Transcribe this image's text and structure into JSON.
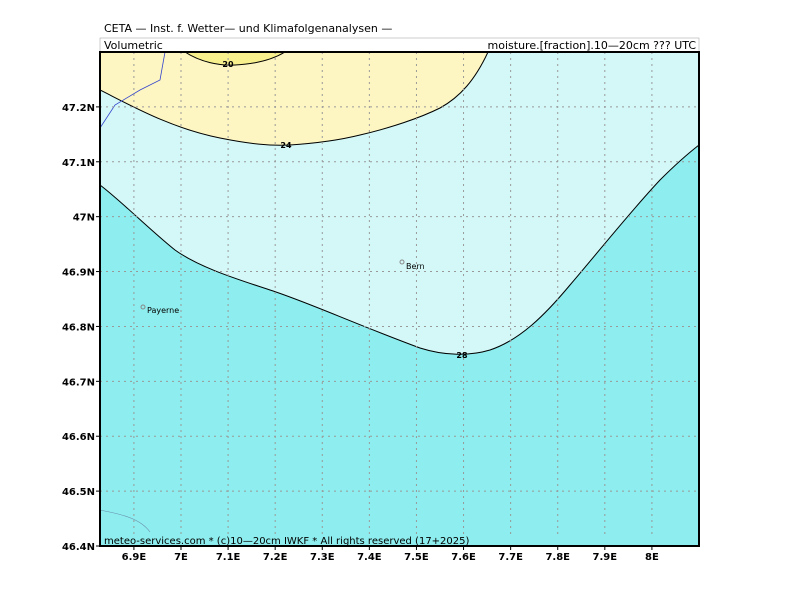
{
  "header": {
    "title": "CETA — Inst. f. Wetter— und Klimafolgenanalysen —",
    "left": "Volumetric",
    "right": "moisture.[fraction].10—20cm ??? UTC"
  },
  "map": {
    "xlim": [
      6.828,
      8.1
    ],
    "ylim": [
      46.4,
      47.3
    ],
    "xticks": [
      {
        "value": 6.9,
        "label": "6.9E"
      },
      {
        "value": 7,
        "label": "7E"
      },
      {
        "value": 7.1,
        "label": "7.1E"
      },
      {
        "value": 7.2,
        "label": "7.2E"
      },
      {
        "value": 7.3,
        "label": "7.3E"
      },
      {
        "value": 7.4,
        "label": "7.4E"
      },
      {
        "value": 7.5,
        "label": "7.5E"
      },
      {
        "value": 7.6,
        "label": "7.6E"
      },
      {
        "value": 7.7,
        "label": "7.7E"
      },
      {
        "value": 7.8,
        "label": "7.8E"
      },
      {
        "value": 7.9,
        "label": "7.9E"
      },
      {
        "value": 8,
        "label": "8E"
      }
    ],
    "yticks": [
      {
        "value": 46.4,
        "label": "46.4N"
      },
      {
        "value": 46.5,
        "label": "46.5N"
      },
      {
        "value": 46.6,
        "label": "46.6N"
      },
      {
        "value": 46.7,
        "label": "46.7N"
      },
      {
        "value": 46.8,
        "label": "46.8N"
      },
      {
        "value": 46.9,
        "label": "46.9N"
      },
      {
        "value": 47,
        "label": "47N"
      },
      {
        "value": 47.1,
        "label": "47.1N"
      },
      {
        "value": 47.2,
        "label": "47.2N"
      }
    ],
    "contours": [
      20,
      24,
      28
    ],
    "cities": [
      "Bern",
      "Payerne"
    ]
  },
  "footer": "meteo-services.com * (c)10—20cm IWKF * All rights reserved (17+2025)"
}
